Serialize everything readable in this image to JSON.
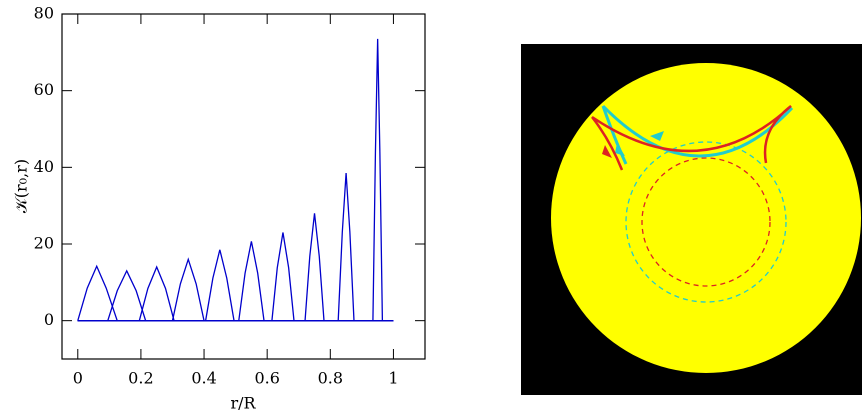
{
  "chart_data": {
    "type": "line",
    "xlabel": "r/R",
    "ylabel": "𝒦(r₀,r)",
    "xlim": [
      -0.05,
      1.1
    ],
    "ylim": [
      -10,
      80
    ],
    "xticks": [
      0,
      0.2,
      0.4,
      0.6,
      0.8,
      1
    ],
    "yticks": [
      0,
      20,
      40,
      60,
      80
    ],
    "color": "#0000cc",
    "series": [
      {
        "x": [
          0,
          0.03,
          0.06,
          0.09,
          0.125,
          1
        ],
        "values": [
          0,
          8.5,
          14.2,
          8.5,
          0,
          0
        ]
      },
      {
        "x": [
          0,
          0.095,
          0.125,
          0.155,
          0.185,
          0.215,
          1
        ],
        "values": [
          0,
          0,
          7.8,
          13,
          7.8,
          0,
          0
        ]
      },
      {
        "x": [
          0,
          0.195,
          0.222,
          0.25,
          0.278,
          0.305,
          1
        ],
        "values": [
          0,
          0,
          8.4,
          14,
          8.4,
          0,
          0
        ]
      },
      {
        "x": [
          0,
          0.3,
          0.325,
          0.35,
          0.375,
          0.4,
          1
        ],
        "values": [
          0,
          0,
          9.6,
          16,
          9.6,
          0,
          0
        ]
      },
      {
        "x": [
          0,
          0.405,
          0.428,
          0.45,
          0.472,
          0.495,
          1
        ],
        "values": [
          0,
          0,
          11.1,
          18.5,
          11.1,
          0,
          0
        ]
      },
      {
        "x": [
          0,
          0.51,
          0.53,
          0.55,
          0.57,
          0.59,
          1
        ],
        "values": [
          0,
          0,
          12.4,
          20.7,
          12.4,
          0,
          0
        ]
      },
      {
        "x": [
          0,
          0.615,
          0.632,
          0.65,
          0.668,
          0.685,
          1
        ],
        "values": [
          0,
          0,
          13.8,
          23,
          13.8,
          0,
          0
        ]
      },
      {
        "x": [
          0,
          0.72,
          0.735,
          0.75,
          0.765,
          0.78,
          1
        ],
        "values": [
          0,
          0,
          16.8,
          28,
          16.8,
          0,
          0
        ]
      },
      {
        "x": [
          0,
          0.825,
          0.838,
          0.85,
          0.862,
          0.875,
          1
        ],
        "values": [
          0,
          0,
          23.1,
          38.5,
          23.1,
          0,
          0
        ]
      },
      {
        "x": [
          0,
          0.935,
          0.943,
          0.95,
          0.957,
          0.965,
          1
        ],
        "values": [
          0,
          0,
          44.1,
          73.5,
          44.1,
          0,
          0
        ]
      }
    ]
  }
}
